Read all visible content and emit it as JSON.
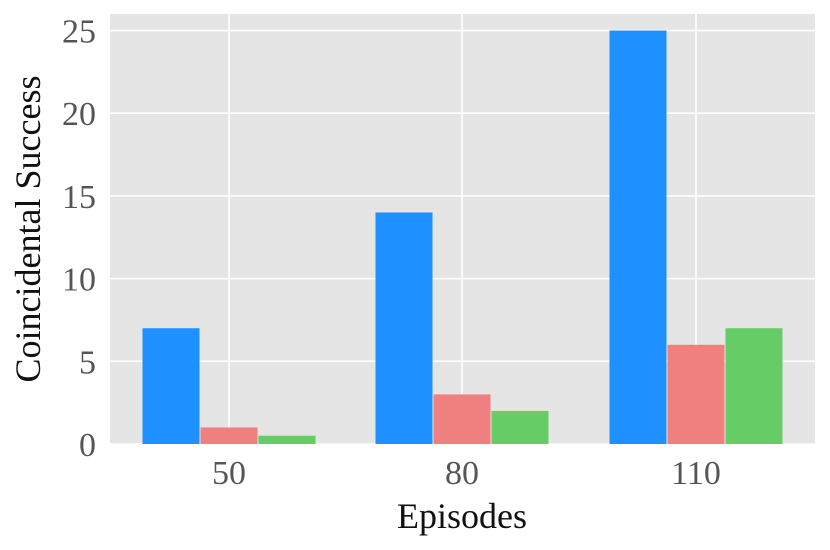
{
  "chart_data": {
    "type": "bar",
    "xlabel": "Episodes",
    "ylabel": "Coincidental Success",
    "categories": [
      "50",
      "80",
      "110"
    ],
    "series": [
      {
        "color": "#1f90ff",
        "values": [
          7,
          14,
          25
        ]
      },
      {
        "color": "#f08080",
        "values": [
          1,
          3,
          6
        ]
      },
      {
        "color": "#66cc66",
        "values": [
          0.5,
          2,
          7
        ]
      }
    ],
    "yticks": [
      "0",
      "5",
      "10",
      "15",
      "20",
      "25"
    ],
    "ylim": [
      0,
      26
    ],
    "grid": true,
    "background": "#e5e5e5"
  }
}
